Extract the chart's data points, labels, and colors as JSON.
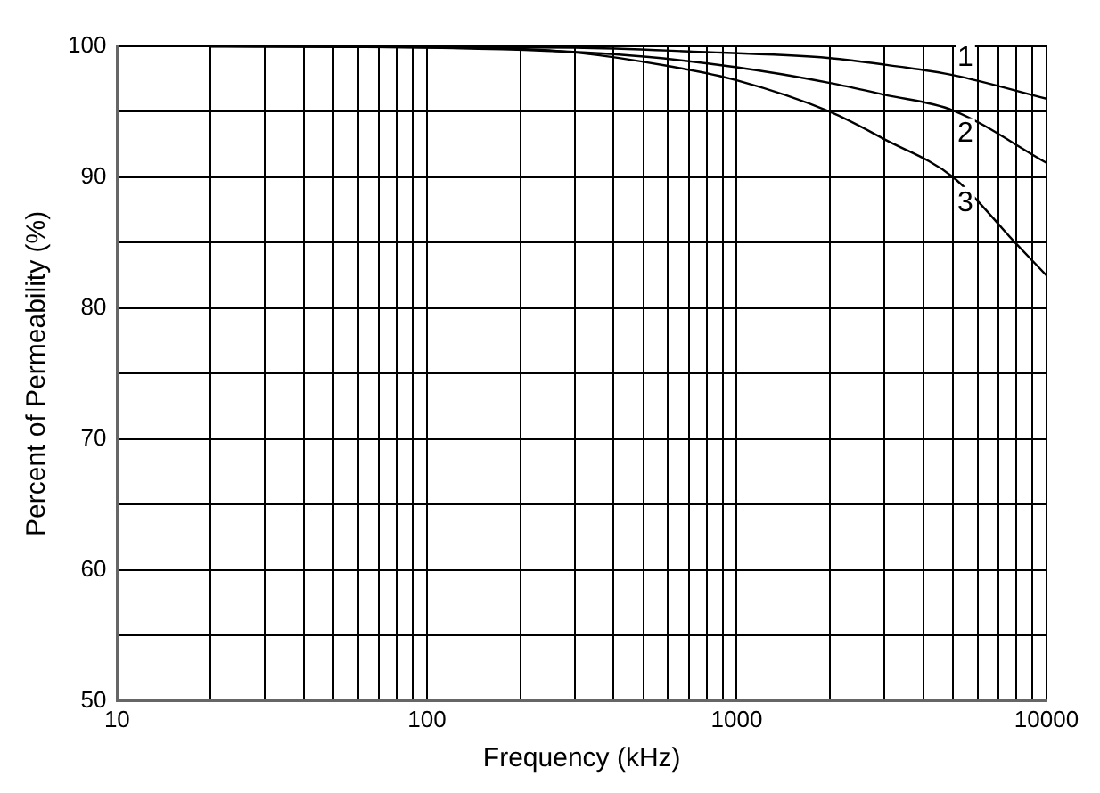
{
  "chart_data": {
    "type": "line",
    "xlabel": "Frequency (kHz)",
    "ylabel": "Percent of Permeability (%)",
    "log": "x",
    "grid": true,
    "legend": false,
    "marker": "none",
    "line_style": "solid",
    "xlim": [
      10,
      10000
    ],
    "ylim": [
      50,
      100
    ],
    "xticks": [
      10,
      {
        "value": 20,
        "label": null
      },
      {
        "value": 30,
        "label": null
      },
      {
        "value": 40,
        "label": null
      },
      {
        "value": 50,
        "label": null
      },
      {
        "value": 60,
        "label": null
      },
      {
        "value": 70,
        "label": null
      },
      {
        "value": 80,
        "label": null
      },
      {
        "value": 90,
        "label": null
      },
      100,
      {
        "value": 200,
        "label": null
      },
      {
        "value": 300,
        "label": null
      },
      {
        "value": 400,
        "label": null
      },
      {
        "value": 500,
        "label": null
      },
      {
        "value": 600,
        "label": null
      },
      {
        "value": 700,
        "label": null
      },
      {
        "value": 800,
        "label": null
      },
      {
        "value": 900,
        "label": null
      },
      1000,
      {
        "value": 2000,
        "label": null
      },
      {
        "value": 3000,
        "label": null
      },
      {
        "value": 4000,
        "label": null
      },
      {
        "value": 5000,
        "label": null
      },
      {
        "value": 6000,
        "label": null
      },
      {
        "value": 7000,
        "label": null
      },
      {
        "value": 8000,
        "label": null
      },
      {
        "value": 9000,
        "label": null
      },
      10000
    ],
    "yticks": [
      50,
      {
        "value": 55,
        "label": null
      },
      60,
      {
        "value": 65,
        "label": null
      },
      70,
      {
        "value": 75,
        "label": null
      },
      80,
      {
        "value": 85,
        "label": null
      },
      90,
      {
        "value": 95,
        "label": null
      },
      100
    ],
    "series": [
      {
        "name": "1",
        "color": "#000000",
        "x": [
          20,
          300,
          720,
          2000,
          3000,
          5000,
          10000
        ],
        "values": [
          100,
          99.9,
          99.6,
          99.1,
          98.6,
          97.8,
          96.0
        ]
      },
      {
        "name": "2",
        "color": "#000000",
        "x": [
          20,
          100,
          400,
          1000,
          2000,
          3000,
          5000,
          10000
        ],
        "values": [
          100,
          99.9,
          99.4,
          98.4,
          97.2,
          96.3,
          95.1,
          91.1
        ]
      },
      {
        "name": "3",
        "color": "#000000",
        "x": [
          20,
          200,
          310,
          600,
          1000,
          2000,
          3000,
          5000,
          8000,
          10000
        ],
        "values": [
          100,
          99.8,
          99.5,
          98.5,
          97.4,
          95.0,
          92.9,
          90.0,
          84.9,
          82.5
        ]
      }
    ]
  }
}
